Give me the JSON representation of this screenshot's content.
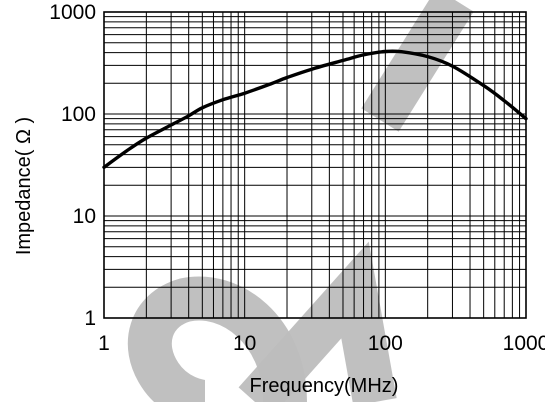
{
  "chart_data": {
    "type": "line",
    "title": "",
    "xlabel": "Frequency(MHz)",
    "ylabel": "Impedance( Ω )",
    "xscale": "log",
    "yscale": "log",
    "xlim": [
      1,
      1000
    ],
    "ylim": [
      1,
      1000
    ],
    "x_ticks": [
      "1",
      "10",
      "100",
      "1000"
    ],
    "y_ticks": [
      "1",
      "10",
      "100",
      "1000"
    ],
    "grid": true,
    "legend": "none",
    "series": [
      {
        "values": [
          [
            1,
            30
          ],
          [
            1.5,
            45
          ],
          [
            2,
            58
          ],
          [
            3,
            78
          ],
          [
            4,
            96
          ],
          [
            5,
            115
          ],
          [
            7,
            138
          ],
          [
            10,
            160
          ],
          [
            15,
            195
          ],
          [
            20,
            228
          ],
          [
            30,
            275
          ],
          [
            50,
            335
          ],
          [
            70,
            380
          ],
          [
            100,
            410
          ],
          [
            130,
            408
          ],
          [
            200,
            365
          ],
          [
            300,
            295
          ],
          [
            500,
            190
          ],
          [
            700,
            135
          ],
          [
            1000,
            90
          ]
        ]
      }
    ]
  }
}
